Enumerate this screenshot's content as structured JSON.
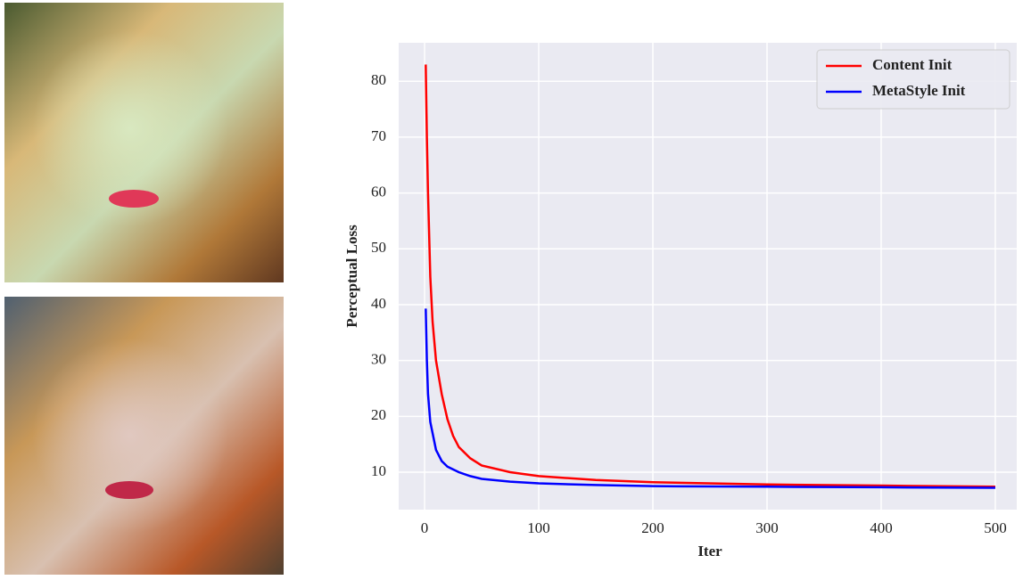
{
  "chart_data": {
    "type": "line",
    "xlabel": "Iter",
    "ylabel": "Perceptual Loss",
    "x": [
      1,
      2,
      3,
      5,
      7,
      10,
      15,
      20,
      25,
      30,
      40,
      50,
      75,
      100,
      150,
      200,
      300,
      400,
      500
    ],
    "series": [
      {
        "name": "Content Init",
        "color": "#ff0000",
        "values": [
          83,
          70,
          60,
          45,
          37,
          30,
          24,
          19.5,
          16.5,
          14.5,
          12.5,
          11.2,
          10,
          9.3,
          8.6,
          8.2,
          7.8,
          7.6,
          7.4
        ]
      },
      {
        "name": "MetaStyle Init",
        "color": "#0000ff",
        "values": [
          39.3,
          30,
          24,
          19,
          17,
          14,
          12,
          11,
          10.5,
          10,
          9.3,
          8.8,
          8.3,
          8,
          7.7,
          7.5,
          7.4,
          7.3,
          7.2
        ]
      }
    ],
    "xlim": [
      -22.7,
      518.8
    ],
    "ylim": [
      3.3,
      86.9
    ],
    "xticks": [
      0,
      100,
      200,
      300,
      400,
      500
    ],
    "yticks": [
      10,
      20,
      30,
      40,
      50,
      60,
      70,
      80
    ],
    "grid": true,
    "legend": "upper-right"
  }
}
